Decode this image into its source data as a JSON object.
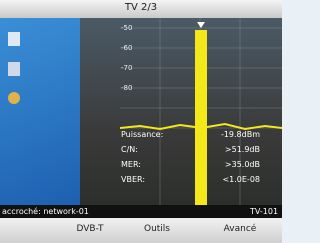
{
  "header": {
    "title": "TV 2/3"
  },
  "spectrum": {
    "level_labels": [
      "-50",
      "-60",
      "-70",
      "-80"
    ]
  },
  "measurements": [
    {
      "label": "Puissance:",
      "value": "-19.8dBm"
    },
    {
      "label": "C/N:",
      "value": ">51.9dB"
    },
    {
      "label": "MER:",
      "value": ">35.0dB"
    },
    {
      "label": "VBER:",
      "value": "<1.0E-08"
    }
  ],
  "status": {
    "lock": "accroché: network-01",
    "channel": "TV-101"
  },
  "buttons": [
    "DVB-T",
    "Outils",
    "Avancé"
  ]
}
